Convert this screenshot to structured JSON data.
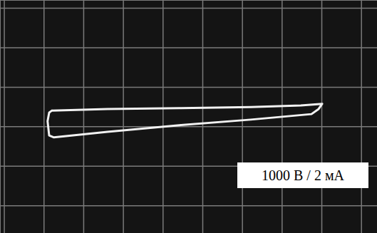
{
  "chart_data": {
    "type": "line",
    "x": [
      -3.8,
      -2.4,
      -0.59,
      1.21,
      2.47,
      3.01,
      2.92,
      2.74,
      1.21,
      -0.59,
      -2.4,
      -3.75,
      -3.87,
      -3.91,
      -3.87,
      -3.8
    ],
    "values": [
      0.41,
      0.45,
      0.47,
      0.5,
      0.54,
      0.58,
      0.45,
      0.32,
      0.18,
      0.04,
      -0.13,
      -0.27,
      -0.22,
      0.14,
      0.36,
      0.41
    ],
    "color": "#f2f2f2",
    "xlim": [
      -5.1,
      4.4
    ],
    "ylim": [
      -2.7,
      3.2
    ],
    "xticks": [
      -5,
      -4,
      -3,
      -2,
      -1,
      0,
      1,
      2,
      3,
      4
    ],
    "yticks": [
      -2,
      -1,
      0,
      1,
      2,
      3
    ],
    "grid": true,
    "tick_labels": false,
    "annotations": [
      "1000 В / 2 мА"
    ]
  }
}
